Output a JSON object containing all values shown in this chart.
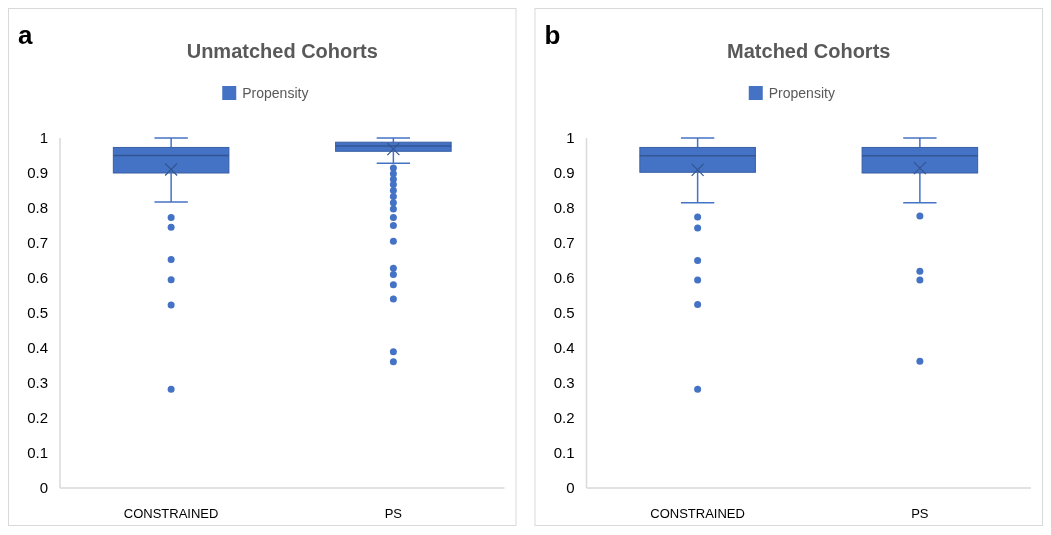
{
  "chart_data": [
    {
      "type": "box",
      "title": "Unmatched Cohorts",
      "annotations": [
        "a"
      ],
      "categories": [
        "CONSTRAINED",
        "PS"
      ],
      "legend": "top",
      "grid": false,
      "ylim": [
        0,
        1
      ],
      "yticks": [
        0,
        0.1,
        0.2,
        0.3,
        0.4,
        0.5,
        0.6,
        0.7,
        0.8,
        0.9,
        1
      ],
      "series": [
        {
          "name": "Propensity",
          "color": "#4472c4",
          "boxes": [
            {
              "low": 0.817,
              "q1": 0.9,
              "median": 0.95,
              "q3": 0.973,
              "high": 1.0,
              "mean": 0.91,
              "outliers": [
                0.773,
                0.745,
                0.653,
                0.595,
                0.523,
                0.282
              ]
            },
            {
              "low": 0.928,
              "q1": 0.962,
              "median": 0.977,
              "q3": 0.988,
              "high": 1.0,
              "mean": 0.968,
              "outliers": [
                0.914,
                0.898,
                0.882,
                0.867,
                0.85,
                0.833,
                0.815,
                0.797,
                0.773,
                0.75,
                0.705,
                0.628,
                0.61,
                0.581,
                0.54,
                0.389,
                0.361
              ]
            }
          ]
        }
      ]
    },
    {
      "type": "box",
      "title": "Matched Cohorts",
      "annotations": [
        "b"
      ],
      "categories": [
        "CONSTRAINED",
        "PS"
      ],
      "legend": "top",
      "grid": false,
      "ylim": [
        0,
        1
      ],
      "yticks": [
        0,
        0.1,
        0.2,
        0.3,
        0.4,
        0.5,
        0.6,
        0.7,
        0.8,
        0.9,
        1
      ],
      "series": [
        {
          "name": "Propensity",
          "color": "#4472c4",
          "boxes": [
            {
              "low": 0.815,
              "q1": 0.902,
              "median": 0.949,
              "q3": 0.973,
              "high": 1.0,
              "mean": 0.909,
              "outliers": [
                0.774,
                0.743,
                0.65,
                0.594,
                0.524,
                0.282
              ]
            },
            {
              "low": 0.815,
              "q1": 0.9,
              "median": 0.949,
              "q3": 0.973,
              "high": 1.0,
              "mean": 0.914,
              "outliers": [
                0.777,
                0.619,
                0.594,
                0.362
              ]
            }
          ]
        }
      ]
    }
  ]
}
